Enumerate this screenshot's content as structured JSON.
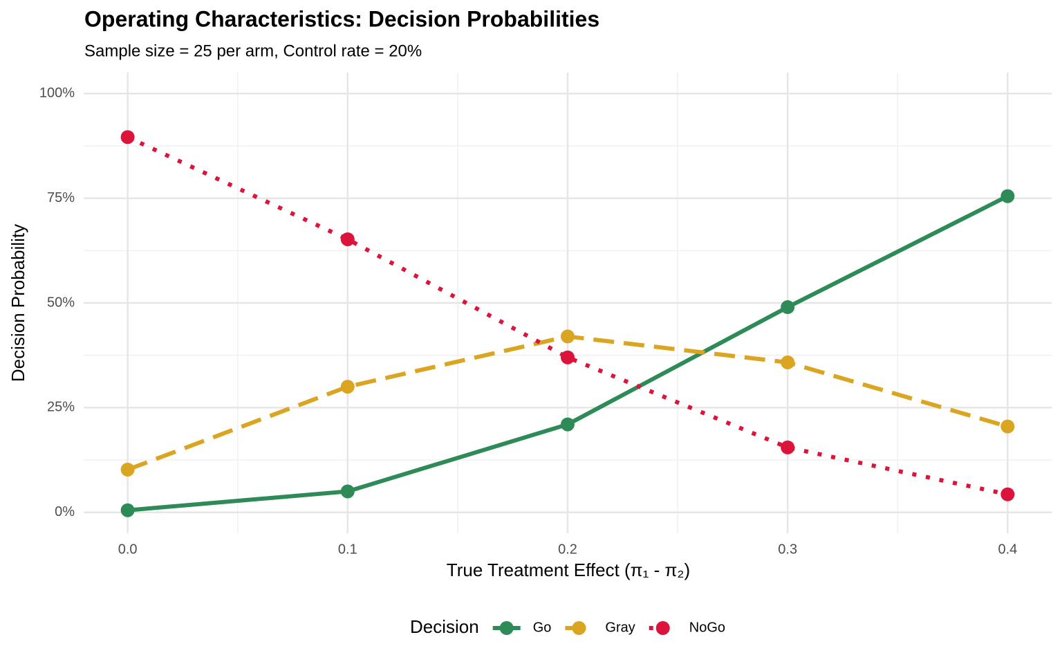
{
  "chart_data": {
    "type": "line",
    "title": "Operating Characteristics: Decision Probabilities",
    "subtitle": "Sample size = 25 per arm, Control rate = 20%",
    "x_label": "True Treatment Effect (π₁ - π₂)",
    "y_label": "Decision Probability",
    "x": [
      0,
      0.1,
      0.2,
      0.3,
      0.4
    ],
    "series": [
      {
        "name": "Go",
        "color": "#2e8b57",
        "linestyle": "solid",
        "values": [
          0.5,
          5,
          21,
          49,
          75.5
        ]
      },
      {
        "name": "Gray",
        "color": "#daa520",
        "linestyle": "dashed",
        "values": [
          10.2,
          30,
          42,
          35.8,
          20.5
        ]
      },
      {
        "name": "NoGo",
        "color": "#dc143c",
        "linestyle": "dotted",
        "values": [
          89.6,
          65.2,
          37,
          15.5,
          4.3
        ]
      }
    ],
    "xlim": [
      -0.02,
      0.42
    ],
    "xticks": [
      {
        "value": 0,
        "label": "0.0"
      },
      0.1,
      0.2,
      0.3,
      0.4
    ],
    "ylim": [
      -5,
      105
    ],
    "yticks": [
      {
        "value": 0,
        "label": "0%"
      },
      {
        "value": 25,
        "label": "25%"
      },
      {
        "value": 50,
        "label": "50%"
      },
      {
        "value": 75,
        "label": "75%"
      },
      {
        "value": 100,
        "label": "100%"
      }
    ],
    "grid": true,
    "legend_title": "Decision",
    "legend_position": "bottom"
  }
}
